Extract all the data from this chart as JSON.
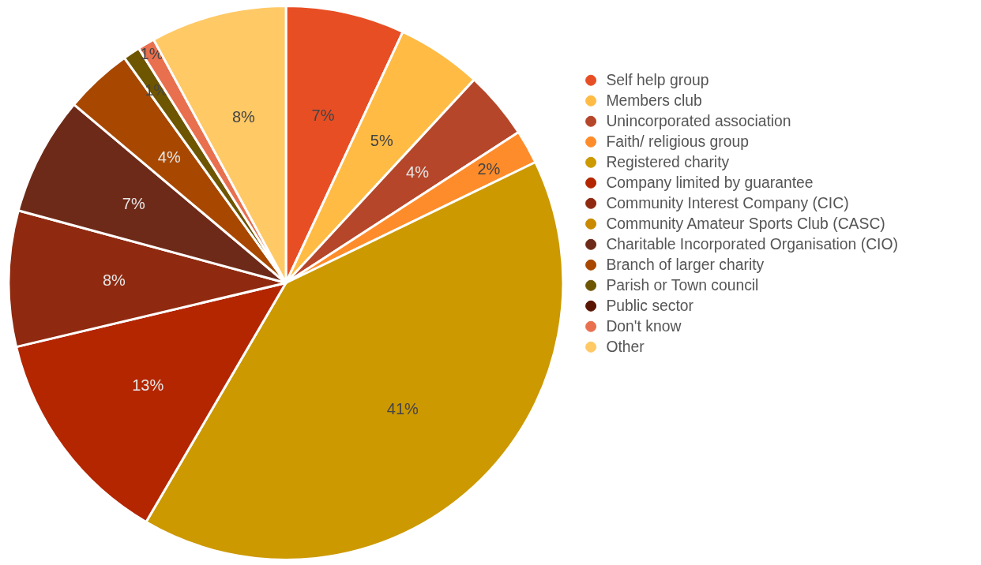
{
  "chart_data": {
    "type": "pie",
    "categories": [
      "Self help group",
      "Members club",
      "Unincorporated association",
      "Faith/ religious group",
      "Registered charity",
      "Company limited by guarantee",
      "Community Interest Company (CIC)",
      "Community Amateur Sports Club (CASC)",
      "Charitable Incorporated Organisation (CIO)",
      "Branch of larger charity",
      "Parish or Town council",
      "Public sector",
      "Don't know",
      "Other"
    ],
    "values": [
      7,
      5,
      4,
      2,
      41,
      13,
      8,
      0,
      7,
      4,
      1,
      0,
      1,
      8
    ],
    "value_labels": [
      "7%",
      "5%",
      "4%",
      "2%",
      "41%",
      "13%",
      "8%",
      null,
      "7%",
      "4%",
      "1%",
      null,
      "1%",
      "8%"
    ],
    "colors": [
      "#e84e24",
      "#ffbb44",
      "#b5462a",
      "#ff8c2a",
      "#cc9900",
      "#b32600",
      "#8f2a10",
      "#c98a00",
      "#6e2a18",
      "#a84800",
      "#6e5500",
      "#5a1500",
      "#e8704f",
      "#ffc966"
    ],
    "legend": "right"
  }
}
